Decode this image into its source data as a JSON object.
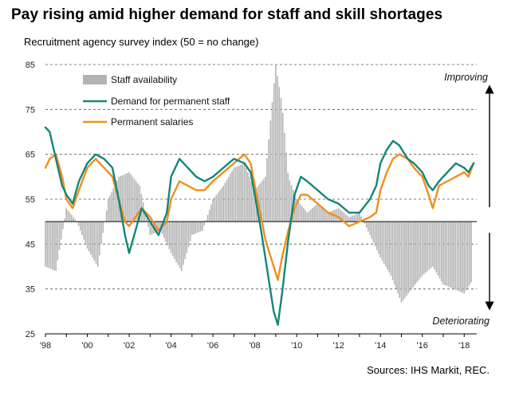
{
  "title": "Pay rising amid higher demand for staff and skill shortages",
  "subtitle": "Recruitment agency survey index (50 = no change)",
  "source": "Sources: IHS Markit, REC.",
  "colors": {
    "bars": "#b3b3b3",
    "demand": "#15857a",
    "salaries": "#f28e1c",
    "zero_line": "#000000"
  },
  "chart_data": {
    "type": "line",
    "title": "Pay rising amid higher demand for staff and skill shortages",
    "ylabel": "Recruitment agency survey index (50 = no change)",
    "ylim": [
      25,
      85
    ],
    "yticks": [
      25,
      35,
      45,
      55,
      65,
      75,
      85
    ],
    "xlim": [
      1998.0,
      2018.6
    ],
    "xticks": [
      1998,
      2000,
      2002,
      2004,
      2006,
      2008,
      2010,
      2012,
      2014,
      2016,
      2018
    ],
    "xtick_labels": [
      "'98",
      "'00",
      "'02",
      "'04",
      "'06",
      "'08",
      "'10",
      "'12",
      "'14",
      "'16",
      "'18"
    ],
    "baseline": 50,
    "grid": "horizontal dashed",
    "legend_position": "top-left",
    "annotations": [
      "Improving",
      "Deteriorating"
    ],
    "series": [
      {
        "name": "Staff availability",
        "render": "bar",
        "x": [
          1998.0,
          1998.5,
          1999.0,
          1999.5,
          2000.0,
          2000.5,
          2001.0,
          2001.5,
          2002.0,
          2002.5,
          2003.0,
          2003.5,
          2004.0,
          2004.5,
          2005.0,
          2005.5,
          2006.0,
          2006.5,
          2007.0,
          2007.5,
          2008.0,
          2008.5,
          2008.9,
          2009.0,
          2009.3,
          2009.6,
          2010.0,
          2010.5,
          2011.0,
          2011.5,
          2012.0,
          2012.5,
          2013.0,
          2013.5,
          2014.0,
          2014.5,
          2015.0,
          2015.5,
          2016.0,
          2016.5,
          2017.0,
          2017.5,
          2018.0,
          2018.4
        ],
        "values": [
          40,
          39,
          53,
          50,
          44,
          40,
          55,
          60,
          61,
          58,
          47,
          48,
          43,
          39,
          47,
          48,
          55,
          58,
          62,
          63,
          57,
          60,
          80,
          85,
          76,
          60,
          55,
          52,
          54,
          52,
          53,
          51,
          52,
          47,
          42,
          38,
          32,
          35,
          38,
          40,
          36,
          35,
          34,
          37
        ]
      },
      {
        "name": "Demand for permanent staff",
        "render": "line",
        "x": [
          1998.0,
          1998.2,
          1998.5,
          1998.8,
          1999.0,
          1999.3,
          1999.6,
          2000.0,
          2000.4,
          2000.8,
          2001.2,
          2001.5,
          2001.8,
          2002.0,
          2002.3,
          2002.6,
          2003.0,
          2003.4,
          2003.8,
          2004.0,
          2004.4,
          2004.8,
          2005.2,
          2005.6,
          2006.0,
          2006.5,
          2007.0,
          2007.5,
          2007.8,
          2008.0,
          2008.3,
          2008.5,
          2008.7,
          2008.9,
          2009.1,
          2009.3,
          2009.6,
          2009.9,
          2010.2,
          2010.5,
          2011.0,
          2011.5,
          2012.0,
          2012.5,
          2013.0,
          2013.5,
          2013.8,
          2014.0,
          2014.3,
          2014.6,
          2014.9,
          2015.3,
          2015.6,
          2016.0,
          2016.3,
          2016.5,
          2016.8,
          2017.2,
          2017.6,
          2018.0,
          2018.2,
          2018.45
        ],
        "values": [
          71,
          70,
          64,
          58,
          56,
          54,
          59,
          63,
          65,
          64,
          62,
          55,
          47,
          43,
          48,
          53,
          50,
          47,
          52,
          60,
          64,
          62,
          60,
          59,
          60,
          62,
          64,
          63,
          61,
          56,
          48,
          42,
          36,
          30,
          27,
          34,
          46,
          56,
          60,
          59,
          57,
          55,
          54,
          52,
          52,
          55,
          58,
          63,
          66,
          68,
          67,
          64,
          63,
          61,
          58,
          57,
          59,
          61,
          63,
          62,
          61,
          63
        ]
      },
      {
        "name": "Permanent salaries",
        "render": "line",
        "x": [
          1998.0,
          1998.2,
          1998.5,
          1998.8,
          1999.0,
          1999.3,
          1999.6,
          2000.0,
          2000.4,
          2000.8,
          2001.2,
          2001.5,
          2001.8,
          2002.0,
          2002.3,
          2002.6,
          2003.0,
          2003.4,
          2003.8,
          2004.0,
          2004.4,
          2004.8,
          2005.2,
          2005.6,
          2006.0,
          2006.5,
          2007.0,
          2007.5,
          2007.8,
          2008.0,
          2008.3,
          2008.5,
          2008.7,
          2008.9,
          2009.1,
          2009.3,
          2009.6,
          2009.9,
          2010.2,
          2010.5,
          2011.0,
          2011.5,
          2012.0,
          2012.5,
          2013.0,
          2013.5,
          2013.8,
          2014.0,
          2014.3,
          2014.6,
          2014.9,
          2015.3,
          2015.6,
          2016.0,
          2016.3,
          2016.5,
          2016.8,
          2017.2,
          2017.6,
          2018.0,
          2018.2,
          2018.45
        ],
        "values": [
          62,
          64,
          65,
          60,
          55,
          53,
          57,
          62,
          64,
          62,
          60,
          55,
          50,
          49,
          51,
          53,
          51,
          48,
          50,
          55,
          59,
          58,
          57,
          57,
          59,
          61,
          63,
          65,
          63,
          58,
          51,
          46,
          43,
          40,
          37,
          42,
          48,
          53,
          56,
          56,
          54,
          52,
          51,
          49,
          50,
          51,
          52,
          57,
          61,
          64,
          65,
          64,
          62,
          60,
          56,
          53,
          58,
          59,
          60,
          61,
          60,
          63
        ]
      }
    ]
  }
}
